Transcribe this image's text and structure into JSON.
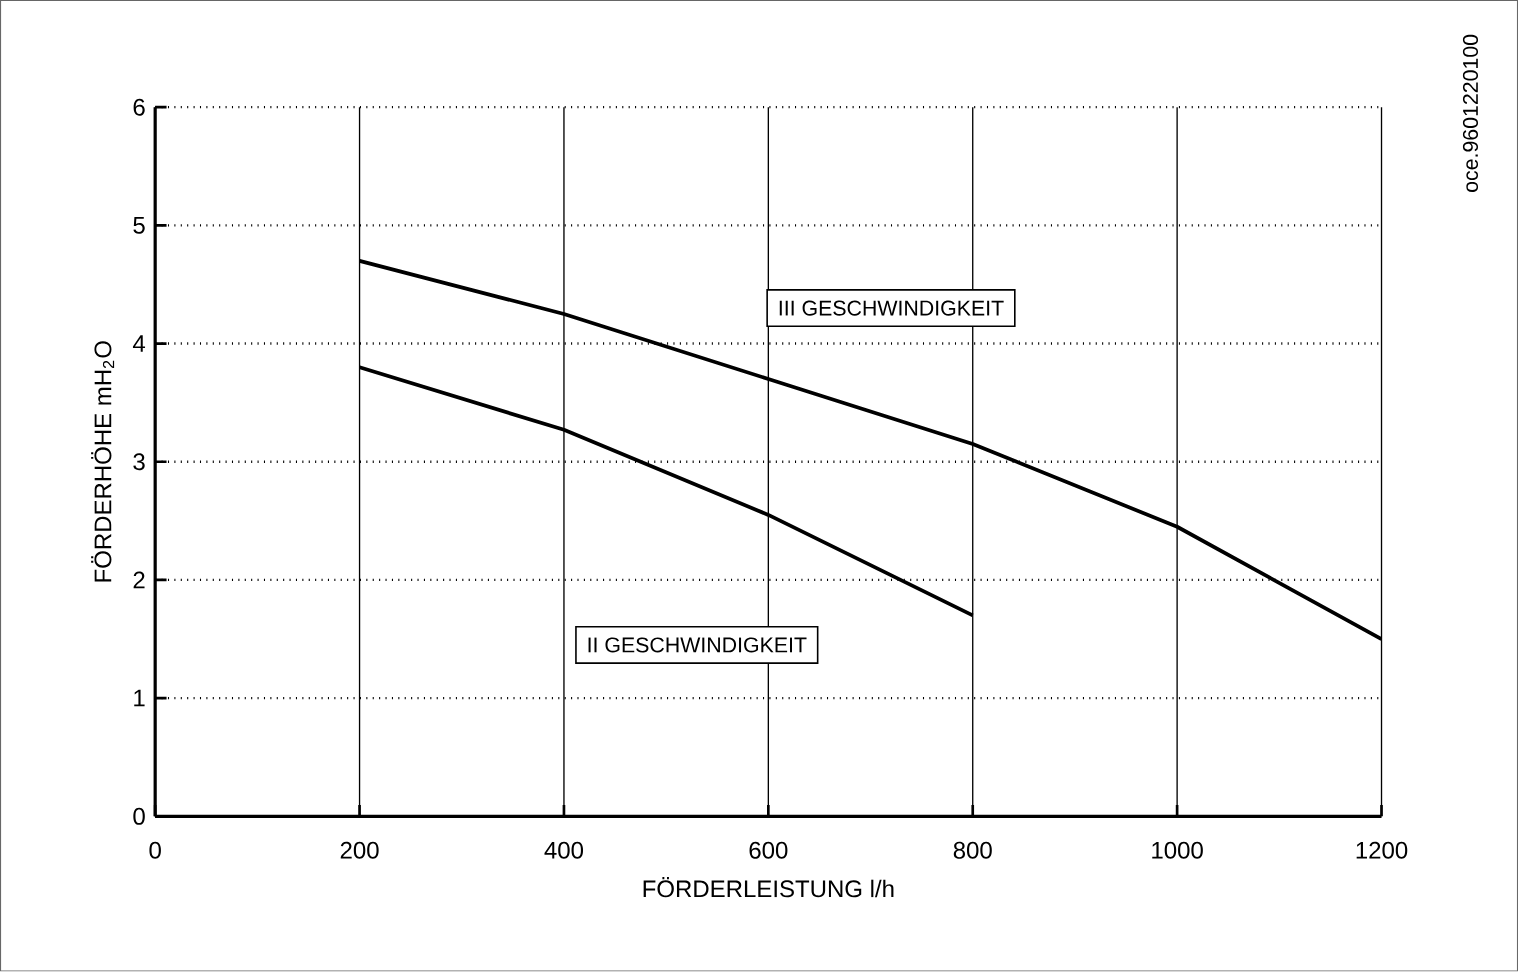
{
  "chart_data": {
    "type": "line",
    "xlabel": "FÖRDERLEISTUNG l/h",
    "ylabel": "FÖRDERHÖHE mH$_{2}$O",
    "annotations": [
      "oce.9601220100"
    ],
    "series": [
      {
        "name": "II GESCHWINDIGKEIT",
        "color": "#000000",
        "x": [
          200,
          400,
          600,
          800
        ],
        "values": [
          3.8,
          3.27,
          2.55,
          1.7
        ]
      },
      {
        "name": "III GESCHWINDIGKEIT",
        "color": "#000000",
        "x": [
          200,
          400,
          600,
          800,
          1000,
          1200
        ],
        "values": [
          4.7,
          4.25,
          3.7,
          3.15,
          2.45,
          1.5
        ]
      }
    ],
    "xlim": [
      0,
      1200
    ],
    "ylim": [
      0,
      6
    ],
    "xticks": [
      0,
      200,
      400,
      600,
      800,
      1000,
      1200
    ],
    "yticks": [
      0,
      1,
      2,
      3,
      4,
      5,
      6
    ],
    "grid": true,
    "legend": false,
    "marker": "none",
    "line_style": "solid"
  }
}
